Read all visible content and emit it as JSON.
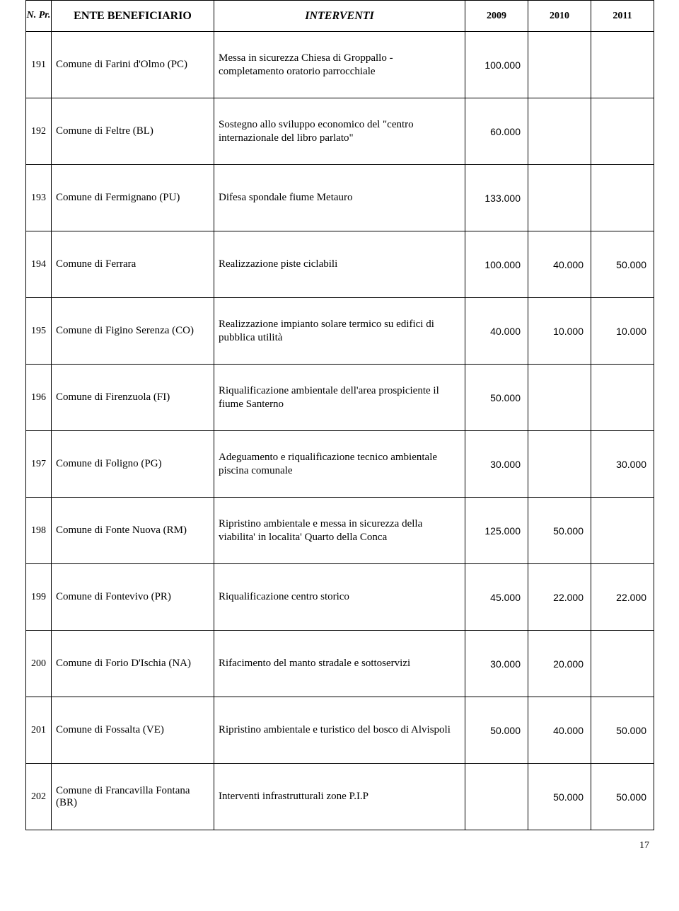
{
  "header": {
    "n_pr": "N. Pr.",
    "ente": "ENTE BENEFICIARIO",
    "interventi": "INTERVENTI",
    "y2009": "2009",
    "y2010": "2010",
    "y2011": "2011"
  },
  "rows": [
    {
      "n": "191",
      "ente": "Comune di Farini d'Olmo (PC)",
      "int": "Messa in sicurezza Chiesa di Groppallo - completamento oratorio parrocchiale",
      "y2009": "100.000",
      "y2010": "",
      "y2011": ""
    },
    {
      "n": "192",
      "ente": "Comune di Feltre (BL)",
      "int": "Sostegno allo sviluppo economico del \"centro internazionale del libro parlato\"",
      "y2009": "60.000",
      "y2010": "",
      "y2011": ""
    },
    {
      "n": "193",
      "ente": "Comune di Fermignano (PU)",
      "int": "Difesa spondale fiume Metauro",
      "y2009": "133.000",
      "y2010": "",
      "y2011": ""
    },
    {
      "n": "194",
      "ente": "Comune di Ferrara",
      "int": "Realizzazione piste ciclabili",
      "y2009": "100.000",
      "y2010": "40.000",
      "y2011": "50.000"
    },
    {
      "n": "195",
      "ente": "Comune di Figino Serenza (CO)",
      "int": "Realizzazione impianto solare termico su edifici di pubblica utilità",
      "y2009": "40.000",
      "y2010": "10.000",
      "y2011": "10.000"
    },
    {
      "n": "196",
      "ente": "Comune di Firenzuola (FI)",
      "int": "Riqualificazione ambientale dell'area prospiciente il fiume Santerno",
      "y2009": "50.000",
      "y2010": "",
      "y2011": ""
    },
    {
      "n": "197",
      "ente": "Comune di Foligno (PG)",
      "int": "Adeguamento e riqualificazione tecnico ambientale piscina comunale",
      "y2009": "30.000",
      "y2010": "",
      "y2011": "30.000"
    },
    {
      "n": "198",
      "ente": "Comune di Fonte Nuova (RM)",
      "int": "Ripristino ambientale e messa in sicurezza della viabilita' in localita' Quarto della Conca",
      "y2009": "125.000",
      "y2010": "50.000",
      "y2011": ""
    },
    {
      "n": "199",
      "ente": "Comune di Fontevivo (PR)",
      "int": "Riqualificazione centro storico",
      "y2009": "45.000",
      "y2010": "22.000",
      "y2011": "22.000"
    },
    {
      "n": "200",
      "ente": "Comune di Forio D'Ischia (NA)",
      "int": "Rifacimento del manto stradale e sottoservizi",
      "y2009": "30.000",
      "y2010": "20.000",
      "y2011": ""
    },
    {
      "n": "201",
      "ente": "Comune di Fossalta (VE)",
      "int": "Ripristino ambientale e turistico del bosco di Alvispoli",
      "y2009": "50.000",
      "y2010": "40.000",
      "y2011": "50.000"
    },
    {
      "n": "202",
      "ente": "Comune di Francavilla Fontana (BR)",
      "int": "Interventi infrastrutturali zone P.I.P",
      "y2009": "",
      "y2010": "50.000",
      "y2011": "50.000"
    }
  ],
  "page_number": "17"
}
